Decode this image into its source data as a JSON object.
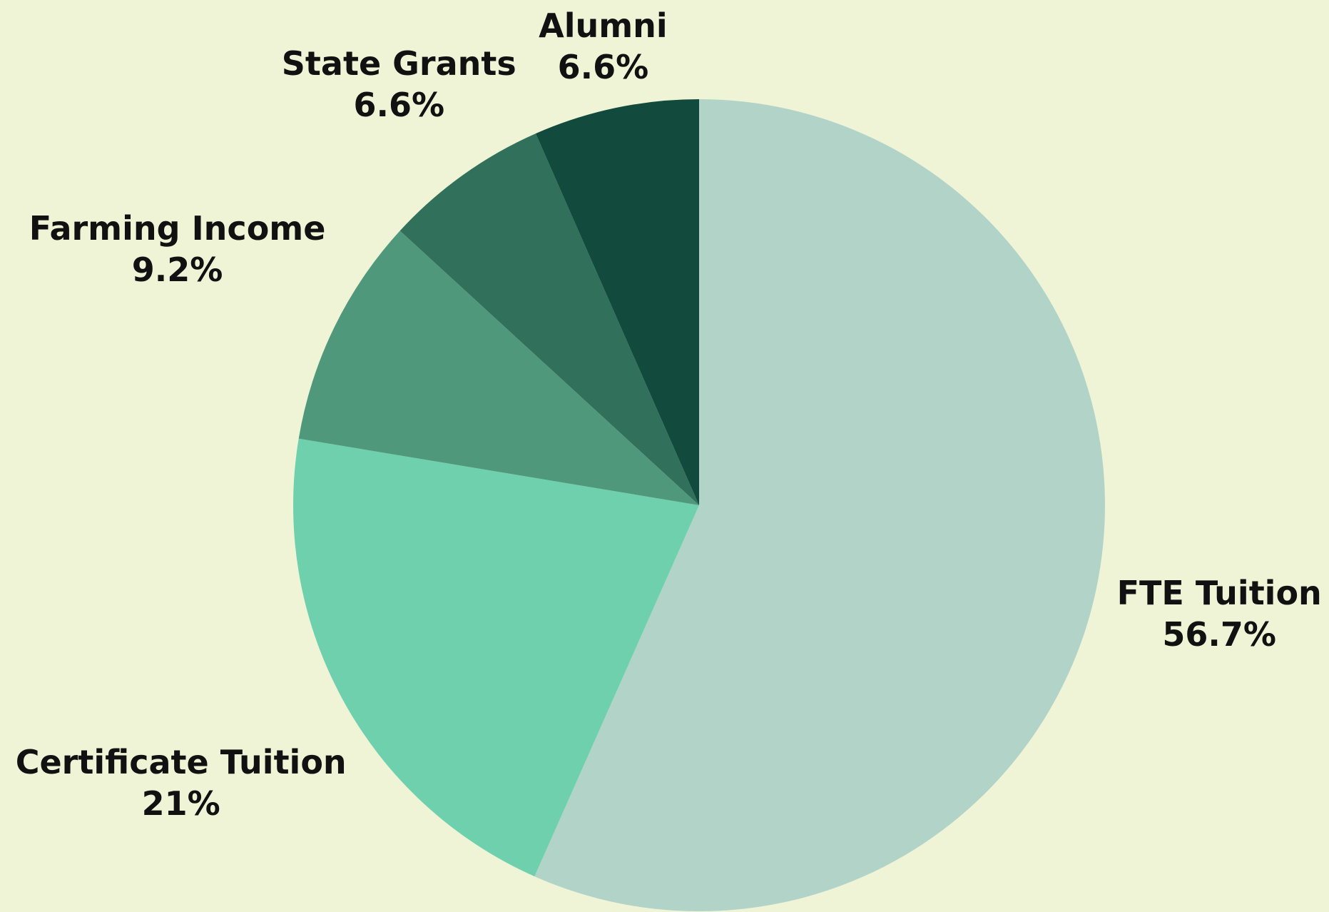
{
  "chart_data": {
    "type": "pie",
    "categories": [
      "FTE Tuition",
      "Certificate Tuition",
      "Farming Income",
      "State Grants",
      "Alumni"
    ],
    "values": [
      56.7,
      21,
      9.2,
      6.6,
      6.6
    ],
    "value_labels": [
      "56.7%",
      "21%",
      "9.2%",
      "6.6%",
      "6.6%"
    ],
    "colors": [
      "#b2d4c8",
      "#6fd0ae",
      "#50987c",
      "#31705a",
      "#124a3e"
    ]
  }
}
